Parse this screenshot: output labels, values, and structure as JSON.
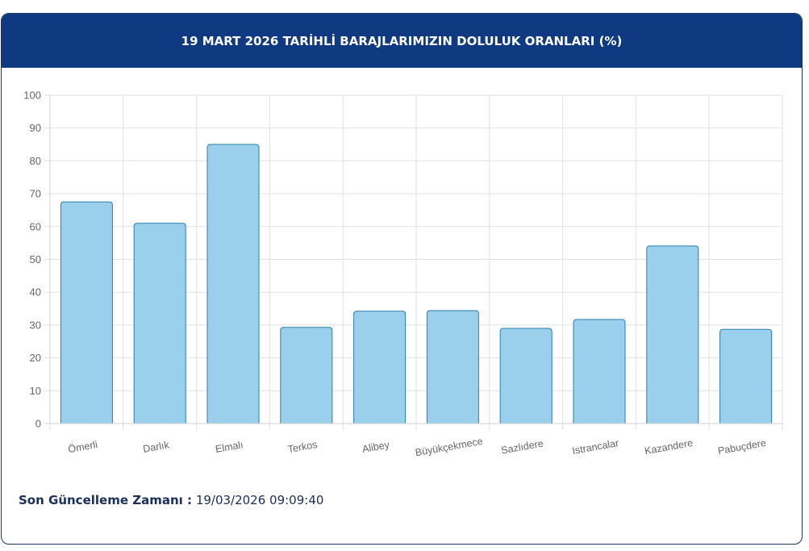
{
  "header": {
    "title": "19 MART 2026 TARİHLİ BARAJLARIMIZIN DOLULUK ORANLARI (%)"
  },
  "footer": {
    "label": "Son Güncelleme Zamanı :",
    "value": "19/03/2026 09:09:40"
  },
  "colors": {
    "header_bg": "#0f3a82",
    "bar_fill": "#9ad0ec",
    "bar_border": "#2a7fb0",
    "grid": "#e2e2e2",
    "tick_text": "#666666"
  },
  "chart_data": {
    "type": "bar",
    "title": "19 MART 2026 TARİHLİ BARAJLARIMIZIN DOLULUK ORANLARI (%)",
    "xlabel": "",
    "ylabel": "",
    "categories": [
      "Ömerli",
      "Darlık",
      "Elmalı",
      "Terkos",
      "Alibey",
      "Büyükçekmece",
      "Sazlıdere",
      "Istrancalar",
      "Kazandere",
      "Pabuçdere"
    ],
    "values": [
      67.5,
      61.0,
      85.0,
      29.3,
      34.2,
      34.4,
      29.0,
      31.7,
      54.1,
      28.7
    ],
    "ylim": [
      0,
      100
    ],
    "yticks": [
      0,
      10,
      20,
      30,
      40,
      50,
      60,
      70,
      80,
      90,
      100
    ],
    "grid": true,
    "legend": null
  }
}
